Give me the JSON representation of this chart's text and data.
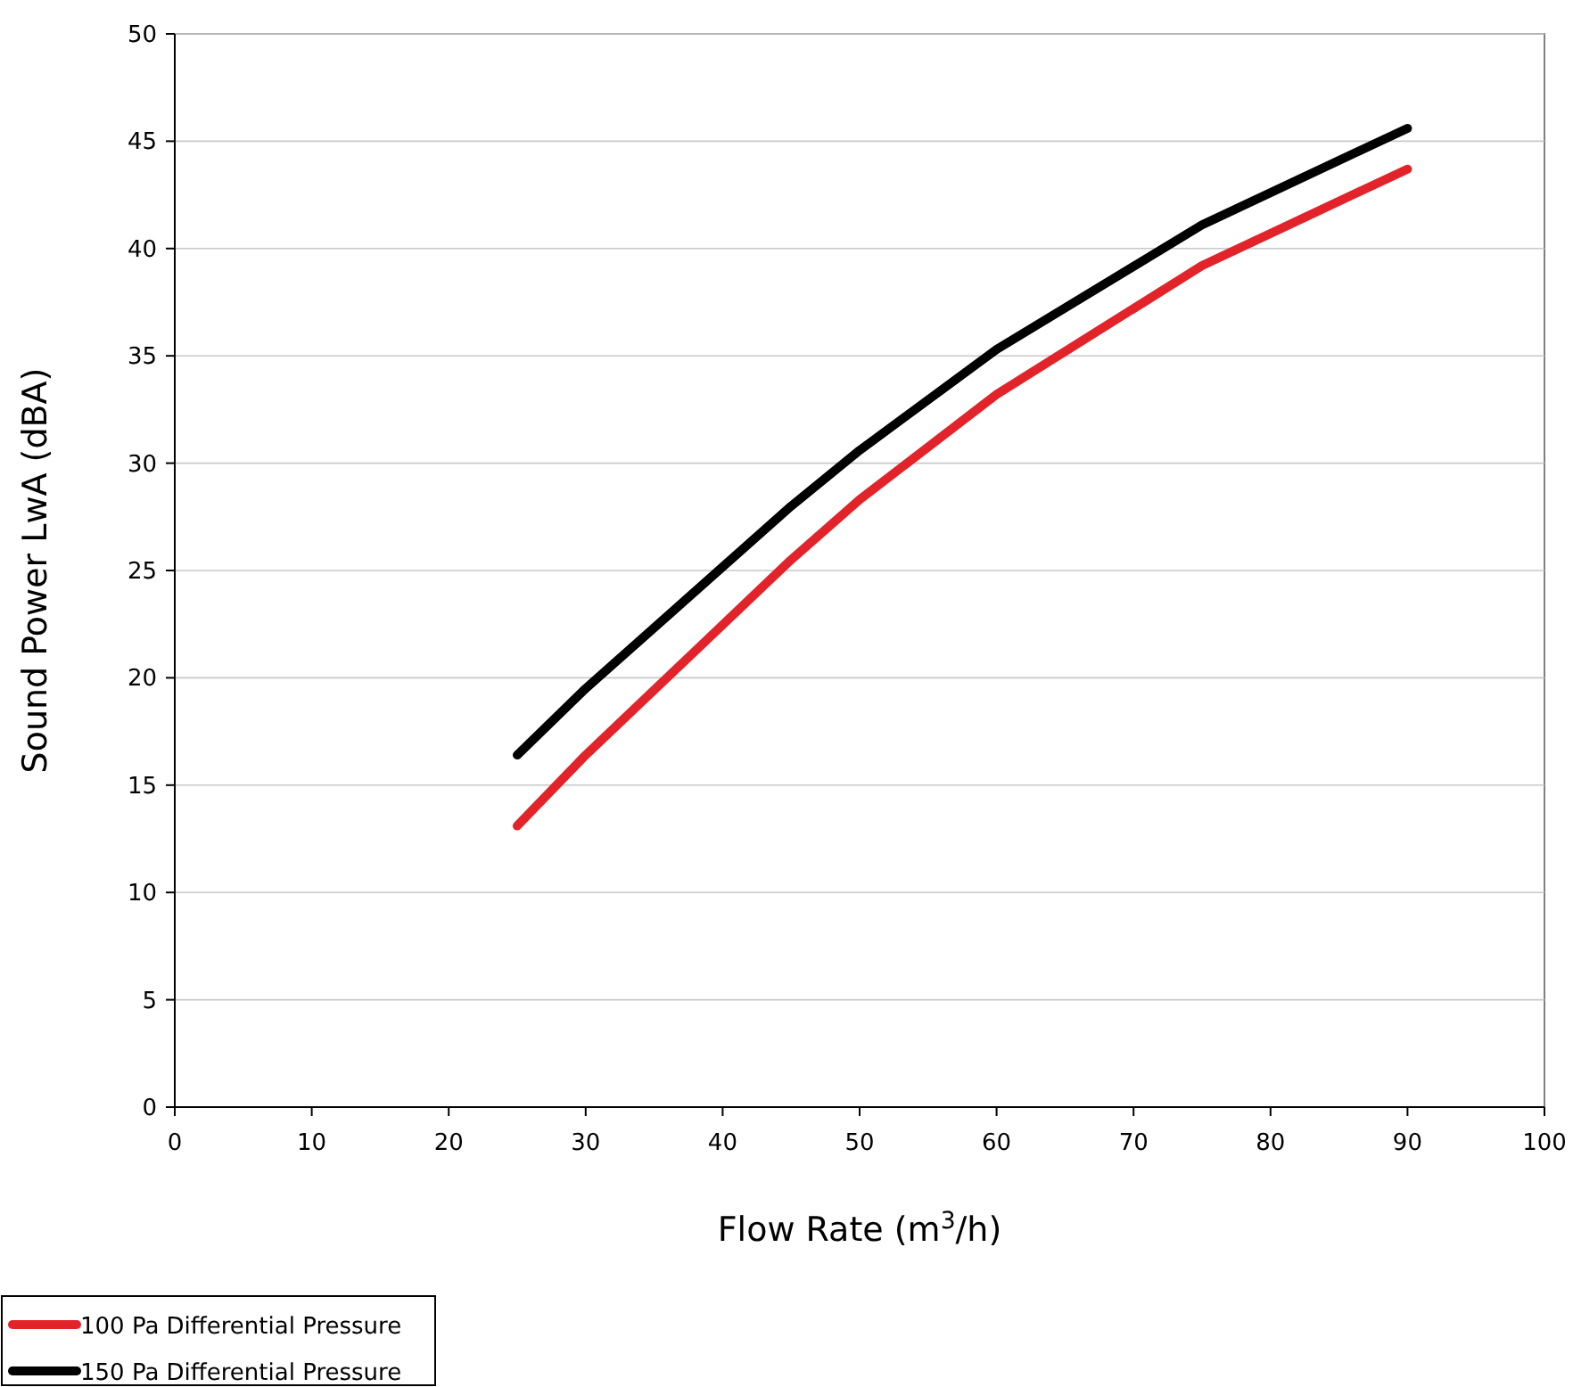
{
  "chart_data": {
    "type": "line",
    "xlabel": "Flow Rate (m$^{3}$/h)",
    "ylabel": "Sound Power LwA (dBA)",
    "x": [
      25,
      30,
      45,
      50,
      60,
      75,
      90
    ],
    "series": [
      {
        "name": "100 Pa Differential Pressure",
        "color": "#e2232a",
        "values": [
          13.1,
          16.4,
          25.5,
          28.3,
          33.2,
          39.2,
          43.7
        ]
      },
      {
        "name": "150 Pa Differential Pressure",
        "color": "#000000",
        "values": [
          16.4,
          19.5,
          28.0,
          30.6,
          35.3,
          41.1,
          45.6
        ]
      }
    ],
    "xlim": [
      0,
      100
    ],
    "xticks": [
      0,
      10,
      20,
      30,
      40,
      50,
      60,
      70,
      80,
      90,
      100
    ],
    "ylim": [
      0,
      50
    ],
    "yticks": [
      0,
      5,
      10,
      15,
      20,
      25,
      30,
      35,
      40,
      45,
      50
    ],
    "grid": "y",
    "legend": "bottom left",
    "marker": "none",
    "line_style": "solid"
  }
}
